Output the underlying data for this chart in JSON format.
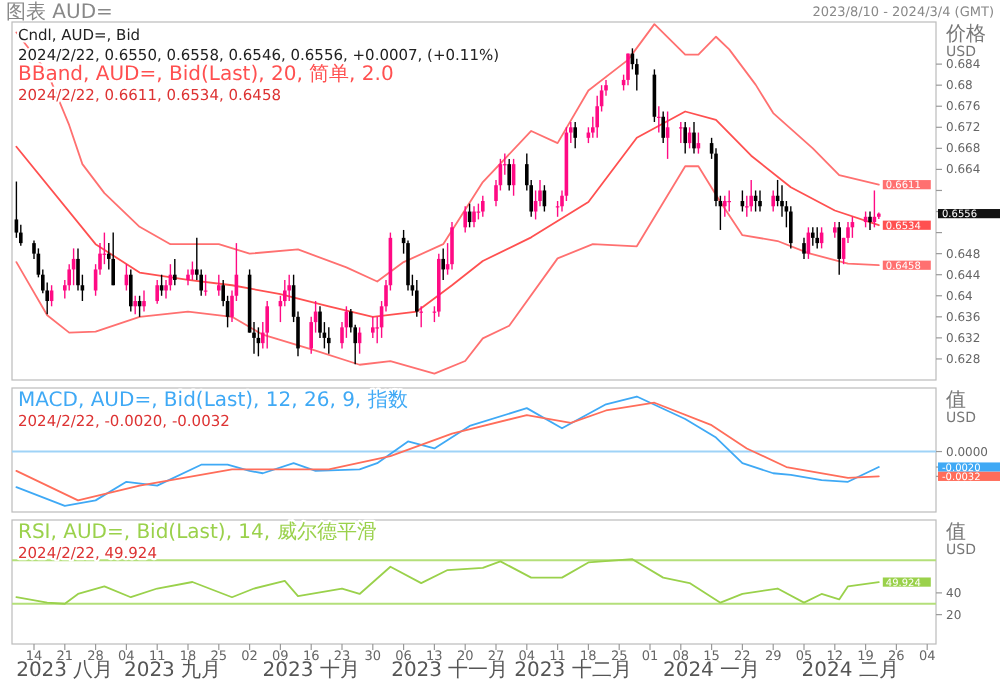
{
  "chart_data": [
    {
      "type": "candlestick",
      "title": "Cndl, AUD=, Bid",
      "subtitle": "2024/2/22, 0.6550, 0.6558, 0.6546, 0.6556, +0.0007, (+0.11%)",
      "ylabel": "价格 USD",
      "legend": "top left",
      "tick_labels": "y",
      "colors": [
        "#000000",
        "#000000",
        "#000000",
        "#000000",
        "#000000",
        "#000000",
        "#ff0a84",
        "#ff0a84",
        "#ff0a84",
        "#ff0a84",
        "#000000",
        "#000000",
        "#ff0a84",
        "#ff0a84",
        "#ff0a84",
        "#000000",
        "#000000",
        "#ff0a84",
        "#000000",
        "#ff0a84",
        "#000000",
        "#ff0a84",
        "#ff0a84",
        "#000000",
        "#ff0a84",
        "#ff0a84",
        "#000000",
        "#ff0a84",
        "#ff0a84",
        "#000000",
        "#000000",
        "#ff0a84",
        "#ff0a84",
        "#000000",
        "#000000",
        "#ff0a84",
        "#ff0a84",
        "#000000",
        "#000000",
        "#000000",
        "#ff0a84",
        "#ff0a84",
        "#ff0a84",
        "#ff0a84",
        "#ff0a84",
        "#000000",
        "#000000",
        "#ff0a84",
        "#ff0a84",
        "#000000",
        "#000000",
        "#000000",
        "#ff0a84",
        "#ff0a84",
        "#000000",
        "#000000",
        "#ff0a84",
        "#ff0a84",
        "#ff0a84",
        "#ff0a84",
        "#ff0a84",
        "#ff0a84",
        "#000000",
        "#000000",
        "#000000",
        "#000000",
        "#ff0a84",
        "#ff0a84",
        "#ff0a84",
        "#000000",
        "#ff0a84",
        "#ff0a84",
        "#ff0a84",
        "#000000",
        "#ff0a84",
        "#ff0a84",
        "#ff0a84",
        "#ff0a84",
        "#ff0a84",
        "#ff0a84",
        "#000000",
        "#ff0a84",
        "#000000",
        "#000000",
        "#ff0a84",
        "#ff0a84",
        "#000000",
        "#ff0a84",
        "#ff0a84",
        "#ff0a84",
        "#ff0a84",
        "#000000",
        "#ff0a84",
        "#ff0a84",
        "#ff0a84",
        "#ff0a84",
        "#ff0a84",
        "#ff0a84",
        "#ff0a84",
        "#000000",
        "#000000",
        "#000000",
        "#ff0a84",
        "#000000",
        "#ff0a84",
        "#ff0a84",
        "#000000",
        "#ff0a84",
        "#000000",
        "#ff0a84",
        "#000000",
        "#000000",
        "#000000",
        "#ff0a84",
        "#ff0a84",
        "#000000",
        "#ff0a84",
        "#ff0a84",
        "#000000",
        "#000000",
        "#ff0a84",
        "#000000",
        "#000000",
        "#000000",
        "#000000",
        "#000000",
        "#ff0a84",
        "#000000",
        "#000000",
        "#ff0a84",
        "#ff0a84",
        "#000000",
        "#ff0a84",
        "#ff0a84",
        "#ff0a84",
        "#ff0a84",
        "#000000",
        "#ff0a84",
        "#ff0a84"
      ],
      "value_labels": [
        null,
        null,
        null,
        null,
        null,
        null,
        null,
        null,
        null,
        null,
        null,
        null,
        null,
        null,
        null,
        null,
        null,
        null,
        null,
        null,
        null,
        null,
        null,
        null,
        null,
        null,
        null,
        null,
        null,
        null,
        null,
        null,
        null,
        null,
        null,
        null,
        null,
        null,
        null,
        null,
        null,
        null,
        null,
        null,
        null,
        null,
        null,
        null,
        null,
        null,
        null,
        null,
        null,
        null,
        null,
        null,
        null,
        null,
        null,
        null,
        null,
        null,
        null,
        null,
        null,
        null,
        null,
        null,
        null,
        null,
        null,
        null,
        null,
        null,
        null,
        null,
        null,
        null,
        null,
        null,
        null,
        null,
        null,
        null,
        null,
        null,
        null,
        null,
        null,
        null,
        null,
        null,
        null,
        null,
        null,
        null,
        null,
        null,
        null,
        null,
        null,
        null,
        null,
        null,
        null,
        null,
        null,
        null,
        null,
        null,
        null,
        null,
        null,
        null,
        null,
        null,
        null,
        null,
        null,
        null,
        null,
        null,
        null,
        null,
        null,
        null,
        null,
        null,
        null,
        null,
        null,
        null,
        null,
        null,
        null,
        null,
        null,
        null,
        "0.6556"
      ],
      "xlim": [
        "2023-08-09",
        "2024-03-06"
      ],
      "ylim": [
        0.624,
        0.692
      ],
      "yticks": [
        0.628,
        0.632,
        0.636,
        0.64,
        0.644,
        0.648,
        {
          "value": 0.652,
          "label": null
        },
        {
          "value": 0.656,
          "label": null
        },
        {
          "value": 0.66,
          "label": null
        },
        0.664,
        0.668,
        0.672,
        0.676,
        0.68,
        0.684
      ],
      "annotations": [
        "图表 AUD=",
        "2023/8/10 - 2024/3/4 (GMT)",
        "2024/2/22, 0.6611, 0.6534, 0.6458"
      ],
      "x": [
        "2023-08-10",
        "2023-08-11",
        "2023-08-14",
        "2023-08-15",
        "2023-08-16",
        "2023-08-17",
        "2023-08-18",
        "2023-08-21",
        "2023-08-22",
        "2023-08-23",
        "2023-08-24",
        "2023-08-25",
        "2023-08-28",
        "2023-08-29",
        "2023-08-30",
        "2023-08-31",
        "2023-09-01",
        "2023-09-04",
        "2023-09-05",
        "2023-09-06",
        "2023-09-07",
        "2023-09-08",
        "2023-09-11",
        "2023-09-12",
        "2023-09-13",
        "2023-09-14",
        "2023-09-15",
        "2023-09-18",
        "2023-09-19",
        "2023-09-20",
        "2023-09-21",
        "2023-09-22",
        "2023-09-25",
        "2023-09-26",
        "2023-09-27",
        "2023-09-28",
        "2023-09-29",
        "2023-10-02",
        "2023-10-03",
        "2023-10-04",
        "2023-10-05",
        "2023-10-06",
        "2023-10-09",
        "2023-10-10",
        "2023-10-11",
        "2023-10-12",
        "2023-10-13",
        "2023-10-16",
        "2023-10-17",
        "2023-10-18",
        "2023-10-19",
        "2023-10-20",
        "2023-10-23",
        "2023-10-24",
        "2023-10-25",
        "2023-10-26",
        "2023-10-27",
        "2023-10-30",
        "2023-10-31",
        "2023-11-01",
        "2023-11-02",
        "2023-11-03",
        "2023-11-06",
        "2023-11-07",
        "2023-11-08",
        "2023-11-09",
        "2023-11-10",
        "2023-11-13",
        "2023-11-14",
        "2023-11-15",
        "2023-11-16",
        "2023-11-17",
        "2023-11-20",
        "2023-11-21",
        "2023-11-22",
        "2023-11-23",
        "2023-11-24",
        "2023-11-27",
        "2023-11-28",
        "2023-11-29",
        "2023-11-30",
        "2023-12-01",
        "2023-12-04",
        "2023-12-05",
        "2023-12-06",
        "2023-12-07",
        "2023-12-08",
        "2023-12-11",
        "2023-12-12",
        "2023-12-13",
        "2023-12-14",
        "2023-12-15",
        "2023-12-18",
        "2023-12-19",
        "2023-12-20",
        "2023-12-21",
        "2023-12-22",
        "2023-12-26",
        "2023-12-27",
        "2023-12-28",
        "2023-12-29",
        "2024-01-02",
        "2024-01-03",
        "2024-01-04",
        "2024-01-05",
        "2024-01-08",
        "2024-01-09",
        "2024-01-10",
        "2024-01-11",
        "2024-01-12",
        "2024-01-15",
        "2024-01-16",
        "2024-01-17",
        "2024-01-18",
        "2024-01-19",
        "2024-01-22",
        "2024-01-23",
        "2024-01-24",
        "2024-01-25",
        "2024-01-26",
        "2024-01-29",
        "2024-01-30",
        "2024-01-31",
        "2024-02-01",
        "2024-02-02",
        "2024-02-05",
        "2024-02-06",
        "2024-02-07",
        "2024-02-08",
        "2024-02-09",
        "2024-02-12",
        "2024-02-13",
        "2024-02-14",
        "2024-02-15",
        "2024-02-16",
        "2024-02-19",
        "2024-02-20",
        "2024-02-21",
        "2024-02-22"
      ],
      "ohlc": [
        [
          0.6545,
          0.6617,
          0.651,
          0.652
        ],
        [
          0.652,
          0.6535,
          0.6495,
          0.65
        ],
        [
          0.65,
          0.6505,
          0.647,
          0.648
        ],
        [
          0.648,
          0.649,
          0.6435,
          0.644
        ],
        [
          0.644,
          0.645,
          0.6405,
          0.641
        ],
        [
          0.641,
          0.6425,
          0.6365,
          0.639
        ],
        [
          0.639,
          0.642,
          0.638,
          0.641
        ],
        [
          0.641,
          0.643,
          0.6395,
          0.642
        ],
        [
          0.642,
          0.646,
          0.641,
          0.645
        ],
        [
          0.645,
          0.649,
          0.642,
          0.647
        ],
        [
          0.647,
          0.649,
          0.641,
          0.642
        ],
        [
          0.642,
          0.644,
          0.639,
          0.641
        ],
        [
          0.641,
          0.646,
          0.64,
          0.645
        ],
        [
          0.645,
          0.65,
          0.644,
          0.648
        ],
        [
          0.648,
          0.652,
          0.646,
          0.648
        ],
        [
          0.648,
          0.65,
          0.645,
          0.647
        ],
        [
          0.647,
          0.652,
          0.642,
          0.642
        ],
        [
          0.642,
          0.646,
          0.641,
          0.644
        ],
        [
          0.644,
          0.645,
          0.637,
          0.638
        ],
        [
          0.638,
          0.64,
          0.6365,
          0.639
        ],
        [
          0.639,
          0.64,
          0.636,
          0.638
        ],
        [
          0.638,
          0.641,
          0.637,
          0.639
        ],
        [
          0.639,
          0.643,
          0.6385,
          0.642
        ],
        [
          0.642,
          0.644,
          0.64,
          0.641
        ],
        [
          0.641,
          0.643,
          0.6395,
          0.642
        ],
        [
          0.642,
          0.646,
          0.641,
          0.644
        ],
        [
          0.644,
          0.647,
          0.642,
          0.643
        ],
        [
          0.643,
          0.645,
          0.642,
          0.644
        ],
        [
          0.644,
          0.6465,
          0.643,
          0.645
        ],
        [
          0.645,
          0.651,
          0.643,
          0.644
        ],
        [
          0.644,
          0.645,
          0.64,
          0.641
        ],
        [
          0.641,
          0.644,
          0.64,
          0.641
        ],
        [
          0.641,
          0.644,
          0.64,
          0.642
        ],
        [
          0.642,
          0.643,
          0.638,
          0.639
        ],
        [
          0.639,
          0.64,
          0.634,
          0.636
        ],
        [
          0.636,
          0.641,
          0.635,
          0.64
        ],
        [
          0.64,
          0.65,
          0.639,
          0.644
        ],
        [
          0.644,
          0.645,
          0.633,
          0.633
        ],
        [
          0.633,
          0.635,
          0.629,
          0.632
        ],
        [
          0.632,
          0.634,
          0.6285,
          0.631
        ],
        [
          0.631,
          0.635,
          0.63,
          0.633
        ],
        [
          0.633,
          0.639,
          0.63,
          0.638
        ],
        [
          0.638,
          0.64,
          0.635,
          0.639
        ],
        [
          0.639,
          0.643,
          0.638,
          0.641
        ],
        [
          0.641,
          0.644,
          0.639,
          0.642
        ],
        [
          0.642,
          0.644,
          0.635,
          0.636
        ],
        [
          0.636,
          0.637,
          0.6285,
          0.63
        ],
        [
          0.63,
          0.636,
          0.629,
          0.635
        ],
        [
          0.635,
          0.639,
          0.633,
          0.637
        ],
        [
          0.637,
          0.638,
          0.632,
          0.633
        ],
        [
          0.633,
          0.635,
          0.63,
          0.632
        ],
        [
          0.632,
          0.634,
          0.629,
          0.631
        ],
        [
          0.631,
          0.635,
          0.63,
          0.634
        ],
        [
          0.634,
          0.638,
          0.632,
          0.637
        ],
        [
          0.637,
          0.6375,
          0.633,
          0.634
        ],
        [
          0.634,
          0.6345,
          0.627,
          0.631
        ],
        [
          0.631,
          0.634,
          0.629,
          0.633
        ],
        [
          0.633,
          0.636,
          0.632,
          0.634
        ],
        [
          0.634,
          0.636,
          0.631,
          0.634
        ],
        [
          0.634,
          0.639,
          0.632,
          0.638
        ],
        [
          0.638,
          0.643,
          0.637,
          0.642
        ],
        [
          0.642,
          0.652,
          0.641,
          0.651
        ],
        [
          0.651,
          0.6525,
          0.648,
          0.65
        ],
        [
          0.65,
          0.6505,
          0.641,
          0.642
        ],
        [
          0.642,
          0.644,
          0.64,
          0.641
        ],
        [
          0.641,
          0.643,
          0.636,
          0.637
        ],
        [
          0.637,
          0.638,
          0.634,
          0.637
        ],
        [
          0.637,
          0.638,
          0.635,
          0.637
        ],
        [
          0.637,
          0.648,
          0.636,
          0.647
        ],
        [
          0.647,
          0.649,
          0.643,
          0.645
        ],
        [
          0.645,
          0.65,
          0.644,
          0.646
        ],
        [
          0.646,
          0.654,
          0.645,
          0.653
        ],
        [
          0.653,
          0.657,
          0.652,
          0.656
        ],
        [
          0.656,
          0.6575,
          0.653,
          0.654
        ],
        [
          0.654,
          0.657,
          0.653,
          0.656
        ],
        [
          0.656,
          0.6575,
          0.6545,
          0.656
        ],
        [
          0.656,
          0.659,
          0.655,
          0.658
        ],
        [
          0.658,
          0.662,
          0.657,
          0.661
        ],
        [
          0.661,
          0.666,
          0.66,
          0.665
        ],
        [
          0.665,
          0.667,
          0.663,
          0.665
        ],
        [
          0.665,
          0.666,
          0.66,
          0.661
        ],
        [
          0.661,
          0.666,
          0.659,
          0.665
        ],
        [
          0.665,
          0.667,
          0.66,
          0.661
        ],
        [
          0.661,
          0.662,
          0.655,
          0.656
        ],
        [
          0.656,
          0.66,
          0.6545,
          0.658
        ],
        [
          0.658,
          0.662,
          0.657,
          0.66
        ],
        [
          0.66,
          0.661,
          0.656,
          0.657
        ],
        [
          0.657,
          0.658,
          0.655,
          0.657
        ],
        [
          0.657,
          0.66,
          0.656,
          0.659
        ],
        [
          0.659,
          0.672,
          0.658,
          0.671
        ],
        [
          0.671,
          0.673,
          0.669,
          0.672
        ],
        [
          0.672,
          0.673,
          0.668,
          0.67
        ],
        [
          0.67,
          0.672,
          0.669,
          0.671
        ],
        [
          0.671,
          0.674,
          0.67,
          0.672
        ],
        [
          0.672,
          0.678,
          0.67,
          0.676
        ],
        [
          0.676,
          0.68,
          0.675,
          0.679
        ],
        [
          0.679,
          0.681,
          0.678,
          0.68
        ],
        [
          0.68,
          0.682,
          0.679,
          0.681
        ],
        [
          0.681,
          0.686,
          0.68,
          0.686
        ],
        [
          0.686,
          0.687,
          0.683,
          0.684
        ],
        [
          0.684,
          0.685,
          0.679,
          0.682
        ],
        [
          0.682,
          0.683,
          0.673,
          0.674
        ],
        [
          0.674,
          0.676,
          0.671,
          0.674
        ],
        [
          0.674,
          0.675,
          0.669,
          0.67
        ],
        [
          0.67,
          0.675,
          0.666,
          0.672
        ],
        [
          0.672,
          0.673,
          0.669,
          0.672
        ],
        [
          0.672,
          0.673,
          0.667,
          0.669
        ],
        [
          0.669,
          0.672,
          0.668,
          0.671
        ],
        [
          0.671,
          0.673,
          0.667,
          0.668
        ],
        [
          0.668,
          0.671,
          0.667,
          0.669
        ],
        [
          0.669,
          0.67,
          0.666,
          0.667
        ],
        [
          0.667,
          0.668,
          0.657,
          0.658
        ],
        [
          0.658,
          0.659,
          0.6525,
          0.657
        ],
        [
          0.657,
          0.659,
          0.655,
          0.658
        ],
        [
          0.658,
          0.66,
          0.656,
          0.658
        ],
        [
          0.658,
          0.66,
          0.656,
          0.657
        ],
        [
          0.657,
          0.659,
          0.655,
          0.657
        ],
        [
          0.657,
          0.662,
          0.656,
          0.659
        ],
        [
          0.659,
          0.66,
          0.656,
          0.658
        ],
        [
          0.658,
          0.66,
          0.656,
          0.657
        ],
        [
          0.657,
          0.66,
          0.656,
          0.659
        ],
        [
          0.659,
          0.662,
          0.657,
          0.658
        ],
        [
          0.658,
          0.661,
          0.655,
          0.657
        ],
        [
          0.657,
          0.658,
          0.653,
          0.656
        ],
        [
          0.656,
          0.657,
          0.649,
          0.65
        ],
        [
          0.65,
          0.651,
          0.647,
          0.648
        ],
        [
          0.648,
          0.653,
          0.647,
          0.652
        ],
        [
          0.652,
          0.653,
          0.6495,
          0.651
        ],
        [
          0.651,
          0.653,
          0.649,
          0.65
        ],
        [
          0.65,
          0.653,
          0.649,
          0.652
        ],
        [
          0.652,
          0.654,
          0.651,
          0.653
        ],
        [
          0.653,
          0.654,
          0.644,
          0.647
        ],
        [
          0.647,
          0.651,
          0.646,
          0.651
        ],
        [
          0.651,
          0.654,
          0.65,
          0.653
        ],
        [
          0.653,
          0.655,
          0.651,
          0.654
        ],
        [
          0.654,
          0.656,
          0.653,
          0.655
        ],
        [
          0.655,
          0.656,
          0.6525,
          0.654
        ],
        [
          0.654,
          0.66,
          0.653,
          0.655
        ],
        [
          0.655,
          0.6558,
          0.6546,
          0.6556
        ]
      ],
      "series": [
        {
          "type": "line",
          "color": "#ff7070",
          "x": [
            "2023-08-10",
            "2023-08-17",
            "2023-08-22",
            "2023-08-25",
            "2023-08-30",
            "2023-09-07",
            "2023-09-14",
            "2023-09-25",
            "2023-10-02",
            "2023-10-13",
            "2023-10-24",
            "2023-10-31",
            "2023-11-06",
            "2023-11-15",
            "2023-11-24",
            "2023-12-05",
            "2023-12-11",
            "2023-12-18",
            "2023-12-27",
            "2024-01-02",
            "2024-01-09",
            "2024-01-12",
            "2024-01-16",
            "2024-01-19",
            "2024-01-25",
            "2024-01-29",
            "2024-02-07",
            "2024-02-13",
            "2024-02-22"
          ],
          "values": [
            0.69,
            0.6825,
            0.6724,
            0.665,
            0.6595,
            0.6531,
            0.6498,
            0.6498,
            0.648,
            0.6488,
            0.6454,
            0.6427,
            0.6464,
            0.6498,
            0.6616,
            0.6713,
            0.669,
            0.679,
            0.6848,
            0.6916,
            0.6858,
            0.6858,
            0.6892,
            0.6868,
            0.6801,
            0.6747,
            0.668,
            0.6629,
            0.6611
          ],
          "value_labels": [
            null,
            null,
            null,
            null,
            null,
            null,
            null,
            null,
            null,
            null,
            null,
            null,
            null,
            null,
            null,
            null,
            null,
            null,
            null,
            null,
            null,
            null,
            null,
            null,
            null,
            null,
            null,
            null,
            "0.6611"
          ]
        },
        {
          "type": "line",
          "name": "BBand, AUD=, Bid(Last), 20, 简单, 2.0",
          "color": "#ff5050",
          "x": [
            "2023-08-10",
            "2023-08-28",
            "2023-09-07",
            "2023-09-18",
            "2023-09-28",
            "2023-10-09",
            "2023-10-20",
            "2023-10-30",
            "2023-11-09",
            "2023-11-17",
            "2023-11-24",
            "2023-12-05",
            "2023-12-18",
            "2023-12-29",
            "2024-01-09",
            "2024-01-16",
            "2024-01-24",
            "2024-02-02",
            "2024-02-12",
            "2024-02-22"
          ],
          "values": [
            0.6683,
            0.6498,
            0.6444,
            0.643,
            0.642,
            0.6403,
            0.638,
            0.636,
            0.637,
            0.642,
            0.6466,
            0.6511,
            0.6578,
            0.67,
            0.675,
            0.6734,
            0.6666,
            0.6606,
            0.6562,
            0.6534
          ],
          "value_labels": [
            null,
            null,
            null,
            null,
            null,
            null,
            null,
            null,
            null,
            null,
            null,
            null,
            null,
            null,
            null,
            null,
            null,
            null,
            null,
            "0.6534"
          ]
        },
        {
          "type": "line",
          "color": "#ff7070",
          "x": [
            "2023-08-10",
            "2023-08-17",
            "2023-08-22",
            "2023-08-28",
            "2023-09-07",
            "2023-09-18",
            "2023-09-28",
            "2023-10-05",
            "2023-10-17",
            "2023-10-27",
            "2023-11-03",
            "2023-11-13",
            "2023-11-20",
            "2023-11-24",
            "2023-11-30",
            "2023-12-11",
            "2023-12-19",
            "2023-12-29",
            "2024-01-09",
            "2024-01-12",
            "2024-01-17",
            "2024-01-22",
            "2024-01-30",
            "2024-02-06",
            "2024-02-15",
            "2024-02-22"
          ],
          "values": [
            0.6464,
            0.6363,
            0.633,
            0.6332,
            0.636,
            0.637,
            0.636,
            0.6326,
            0.6296,
            0.6269,
            0.6276,
            0.6252,
            0.6276,
            0.6319,
            0.6343,
            0.6471,
            0.6498,
            0.6494,
            0.6646,
            0.6646,
            0.6578,
            0.6515,
            0.6504,
            0.6481,
            0.6461,
            0.6458
          ],
          "value_labels": [
            null,
            null,
            null,
            null,
            null,
            null,
            null,
            null,
            null,
            null,
            null,
            null,
            null,
            null,
            null,
            null,
            null,
            null,
            null,
            null,
            null,
            null,
            null,
            null,
            null,
            "0.6458"
          ]
        }
      ]
    },
    {
      "type": "line",
      "ylabel": "值 USD",
      "legend": "top left",
      "tick_labels": "y",
      "xlim": [
        "2023-08-09",
        "2024-03-06"
      ],
      "ylim": [
        -0.0078,
        0.0082
      ],
      "yticks": [
        {
          "value": 0,
          "label": "0.0000"
        },
        {
          "value": -0.002,
          "label": "-0.0020"
        },
        {
          "value": -0.0032,
          "label": "-0.0032"
        }
      ],
      "ref_lines": [
        {
          "axis": "y",
          "value": 0,
          "color": "#9fd3f7"
        }
      ],
      "annotations": [
        "2024/2/22, -0.0020, -0.0032"
      ],
      "series": [
        {
          "name": "MACD, AUD=, Bid(Last), 12, 26, 9, 指数",
          "color": "#3fa9f5",
          "x": [
            "2023-08-10",
            "2023-08-21",
            "2023-08-28",
            "2023-09-04",
            "2023-09-11",
            "2023-09-21",
            "2023-09-27",
            "2023-10-02",
            "2023-10-05",
            "2023-10-12",
            "2023-10-17",
            "2023-10-27",
            "2023-10-31",
            "2023-11-07",
            "2023-11-13",
            "2023-11-21",
            "2023-12-04",
            "2023-12-12",
            "2023-12-22",
            "2023-12-29",
            "2024-01-09",
            "2024-01-16",
            "2024-01-22",
            "2024-01-29",
            "2024-02-02",
            "2024-02-09",
            "2024-02-15",
            "2024-02-22"
          ],
          "values": [
            -0.0046,
            -0.007,
            -0.0063,
            -0.0039,
            -0.0044,
            -0.0017,
            -0.0017,
            -0.0025,
            -0.0028,
            -0.0015,
            -0.0025,
            -0.0023,
            -0.0015,
            0.0013,
            0.0004,
            0.0033,
            0.0056,
            0.003,
            0.0061,
            0.0071,
            0.0042,
            0.0018,
            -0.0015,
            -0.0028,
            -0.003,
            -0.0037,
            -0.0039,
            -0.002
          ]
        },
        {
          "color": "#ff6d5a",
          "x": [
            "2023-08-10",
            "2023-08-24",
            "2023-09-07",
            "2023-09-28",
            "2023-10-20",
            "2023-11-03",
            "2023-11-17",
            "2023-12-04",
            "2023-12-14",
            "2023-12-22",
            "2024-01-02",
            "2024-01-15",
            "2024-01-23",
            "2024-02-01",
            "2024-02-15",
            "2024-02-22"
          ],
          "values": [
            -0.0025,
            -0.0063,
            -0.0044,
            -0.0023,
            -0.0023,
            -0.0006,
            0.0023,
            0.0047,
            0.0037,
            0.0053,
            0.0063,
            0.0034,
            0.0004,
            -0.002,
            -0.0034,
            -0.0032
          ]
        }
      ]
    },
    {
      "type": "line",
      "ylabel": "值 USD",
      "legend": "top left",
      "xlim": [
        "2023-08-09",
        "2024-03-06"
      ],
      "ylim": [
        -7,
        107
      ],
      "yticks": [
        20,
        40
      ],
      "xticks": [
        {
          "value": "2023-08-14",
          "label": "14"
        },
        {
          "value": "2023-08-21",
          "label": "21"
        },
        {
          "value": "2023-08-28",
          "label": "28"
        },
        {
          "value": "2023-09-04",
          "label": "04"
        },
        {
          "value": "2023-09-11",
          "label": "11"
        },
        {
          "value": "2023-09-18",
          "label": "18"
        },
        {
          "value": "2023-09-25",
          "label": "25"
        },
        {
          "value": "2023-10-02",
          "label": "02"
        },
        {
          "value": "2023-10-09",
          "label": "09"
        },
        {
          "value": "2023-10-16",
          "label": "16"
        },
        {
          "value": "2023-10-23",
          "label": "23"
        },
        {
          "value": "2023-10-30",
          "label": "30"
        },
        {
          "value": "2023-11-06",
          "label": "06"
        },
        {
          "value": "2023-11-13",
          "label": "13"
        },
        {
          "value": "2023-11-20",
          "label": "20"
        },
        {
          "value": "2023-11-27",
          "label": "27"
        },
        {
          "value": "2023-12-04",
          "label": "04"
        },
        {
          "value": "2023-12-11",
          "label": "11"
        },
        {
          "value": "2023-12-18",
          "label": "18"
        },
        {
          "value": "2023-12-25",
          "label": "25"
        },
        {
          "value": "2024-01-01",
          "label": "01"
        },
        {
          "value": "2024-01-08",
          "label": "08"
        },
        {
          "value": "2024-01-15",
          "label": "15"
        },
        {
          "value": "2024-01-22",
          "label": "22"
        },
        {
          "value": "2024-01-29",
          "label": "29"
        },
        {
          "value": "2024-02-05",
          "label": "05"
        },
        {
          "value": "2024-02-12",
          "label": "12"
        },
        {
          "value": "2024-02-19",
          "label": "19"
        },
        {
          "value": "2024-02-26",
          "label": "26"
        },
        {
          "value": "2024-03-04",
          "label": "04"
        }
      ],
      "ref_lines": [
        {
          "axis": "y",
          "value": 70,
          "color": "#b4df7a"
        },
        {
          "axis": "y",
          "value": 30,
          "color": "#b4df7a"
        }
      ],
      "annotations": [
        "2024/2/22, 49.924",
        "2023 八月",
        "2023 九月",
        "2023 十月",
        "2023 十一月",
        "2023 十二月",
        "2024 一月",
        "2024 二月"
      ],
      "series": [
        {
          "name": "RSI, AUD=, Bid(Last), 14, 威尔德平滑",
          "color": "#9ad14b",
          "x": [
            "2023-08-10",
            "2023-08-17",
            "2023-08-21",
            "2023-08-24",
            "2023-08-30",
            "2023-09-05",
            "2023-09-11",
            "2023-09-19",
            "2023-09-28",
            "2023-10-03",
            "2023-10-10",
            "2023-10-13",
            "2023-10-23",
            "2023-10-27",
            "2023-11-03",
            "2023-11-10",
            "2023-11-16",
            "2023-11-24",
            "2023-11-28",
            "2023-12-05",
            "2023-12-12",
            "2023-12-18",
            "2023-12-28",
            "2024-01-04",
            "2024-01-10",
            "2024-01-17",
            "2024-01-22",
            "2024-01-30",
            "2024-02-05",
            "2024-02-09",
            "2024-02-13",
            "2024-02-15",
            "2024-02-22"
          ],
          "values": [
            36,
            31,
            30,
            39,
            46,
            36,
            44,
            50,
            36,
            44,
            51,
            37,
            44,
            39,
            64,
            49,
            61,
            63,
            69,
            54,
            54,
            68,
            71,
            54,
            49,
            31,
            39,
            44,
            31,
            39,
            34,
            46,
            49.924
          ],
          "value_labels": [
            null,
            null,
            null,
            null,
            null,
            null,
            null,
            null,
            null,
            null,
            null,
            null,
            null,
            null,
            null,
            null,
            null,
            null,
            null,
            null,
            null,
            null,
            null,
            null,
            null,
            null,
            null,
            null,
            null,
            null,
            null,
            null,
            "49.924"
          ]
        }
      ]
    }
  ]
}
